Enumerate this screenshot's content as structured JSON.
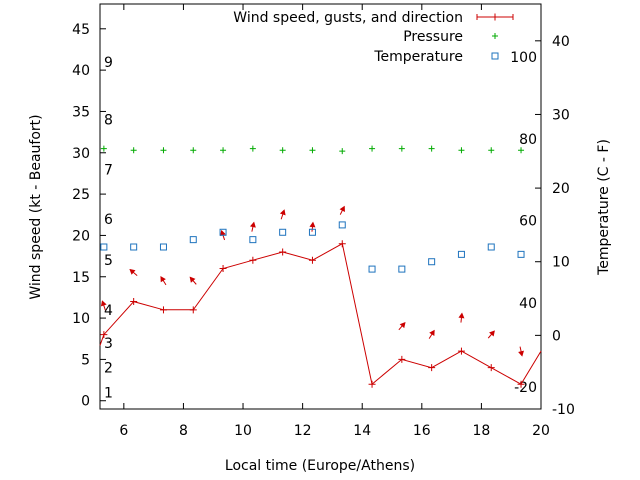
{
  "chart_data": {
    "type": "line",
    "xlabel": "Local time (Europe/Athens)",
    "ylabel_left": "Wind speed (kt - Beaufort)",
    "ylabel_right": "Temperature (C - F)",
    "xlim": [
      5.2,
      20
    ],
    "ylim_left": [
      -1,
      48
    ],
    "ylim_right": [
      -10,
      45
    ],
    "x_ticks": [
      6,
      8,
      10,
      12,
      14,
      16,
      18,
      20
    ],
    "y_ticks_left": [
      0,
      5,
      10,
      15,
      20,
      25,
      30,
      35,
      40,
      45
    ],
    "y_ticks_right": [
      -10,
      0,
      10,
      20,
      30,
      40
    ],
    "beaufort_labels": [
      {
        "label": "1",
        "kt": 1
      },
      {
        "label": "2",
        "kt": 4
      },
      {
        "label": "3",
        "kt": 7
      },
      {
        "label": "4",
        "kt": 11
      },
      {
        "label": "5",
        "kt": 17
      },
      {
        "label": "6",
        "kt": 22
      },
      {
        "label": "7",
        "kt": 28
      },
      {
        "label": "8",
        "kt": 34
      },
      {
        "label": "9",
        "kt": 41
      }
    ],
    "fahrenheit_labels": [
      {
        "label": "-20",
        "c": -7
      },
      {
        "label": "40",
        "c": 4.4
      },
      {
        "label": "60",
        "c": 15.6
      },
      {
        "label": "80",
        "c": 26.7
      },
      {
        "label": "100",
        "c": 37.8
      }
    ],
    "legend": {
      "placement": "top-right",
      "entries": [
        "Wind speed, gusts, and direction",
        "Pressure",
        "Temperature"
      ]
    },
    "series": [
      {
        "name": "Wind speed, gusts, and direction",
        "color": "#cc0000",
        "x": [
          5.33,
          6.33,
          7.33,
          8.33,
          9.33,
          10.33,
          11.33,
          12.33,
          13.33,
          14.33,
          15.33,
          16.33,
          17.33,
          18.33,
          19.33,
          20
        ],
        "y": [
          8,
          12,
          11,
          11,
          16,
          17,
          18,
          17,
          19,
          2,
          5,
          4,
          6,
          4,
          2,
          6
        ],
        "direction_arrows": [
          {
            "x": 5.33,
            "kt": 11.5,
            "dx": -3,
            "dy": -9
          },
          {
            "x": 6.33,
            "kt": 15.5,
            "dx": -7,
            "dy": -6
          },
          {
            "x": 7.33,
            "kt": 14.5,
            "dx": -5,
            "dy": -8
          },
          {
            "x": 8.33,
            "kt": 14.5,
            "dx": -6,
            "dy": -7
          },
          {
            "x": 9.33,
            "kt": 20.0,
            "dx": -3,
            "dy": -9
          },
          {
            "x": 10.33,
            "kt": 21.0,
            "dx": 2,
            "dy": -9
          },
          {
            "x": 11.33,
            "kt": 22.5,
            "dx": 3,
            "dy": -9
          },
          {
            "x": 12.33,
            "kt": 21.0,
            "dx": 1,
            "dy": -9
          },
          {
            "x": 13.33,
            "kt": 23.0,
            "dx": 4,
            "dy": -8
          },
          {
            "x": 15.33,
            "kt": 9.0,
            "dx": 6,
            "dy": -7
          },
          {
            "x": 16.33,
            "kt": 8.0,
            "dx": 5,
            "dy": -8
          },
          {
            "x": 17.33,
            "kt": 10.0,
            "dx": 1,
            "dy": -9
          },
          {
            "x": 18.33,
            "kt": 8.0,
            "dx": 6,
            "dy": -7
          },
          {
            "x": 19.33,
            "kt": 6.0,
            "dx": 2,
            "dy": 9
          }
        ]
      },
      {
        "name": "Pressure",
        "color": "#00aa00",
        "axis": "left",
        "x": [
          5.33,
          6.33,
          7.33,
          8.33,
          9.33,
          10.33,
          11.33,
          12.33,
          13.33,
          14.33,
          15.33,
          16.33,
          17.33,
          18.33,
          19.33
        ],
        "y": [
          30.5,
          30.3,
          30.3,
          30.3,
          30.3,
          30.5,
          30.3,
          30.3,
          30.2,
          30.5,
          30.5,
          30.5,
          30.3,
          30.3,
          30.3
        ]
      },
      {
        "name": "Temperature",
        "color": "#1e73be",
        "axis": "right",
        "x": [
          5.33,
          6.33,
          7.33,
          8.33,
          9.33,
          10.33,
          11.33,
          12.33,
          13.33,
          14.33,
          15.33,
          16.33,
          17.33,
          18.33,
          19.33
        ],
        "y": [
          12,
          12,
          12,
          13,
          14,
          13,
          14,
          14,
          15,
          9,
          9,
          10,
          11,
          12,
          11
        ]
      }
    ]
  }
}
